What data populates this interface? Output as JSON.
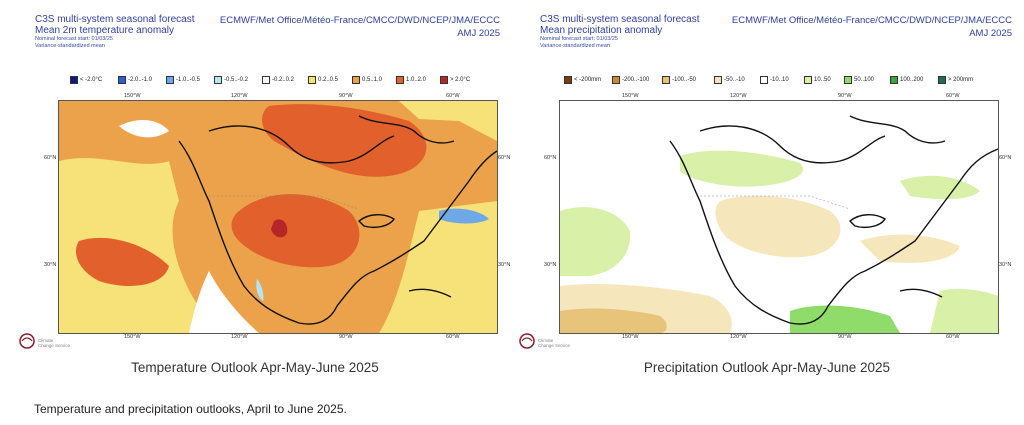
{
  "figure_caption": "Temperature and precipitation outlooks, April to June 2025.",
  "left": {
    "title": "C3S multi-system seasonal forecast",
    "subtitle": "Mean 2m temperature anomaly",
    "start": "Nominal forecast start: 01/03/25",
    "note": "Variance-standardized mean",
    "centres": "ECMWF/Met Office/Météo-France/CMCC/DWD/NCEP/JMA/ECCC",
    "period": "AMJ 2025",
    "legend": [
      {
        "label": "< -2.0°C",
        "color": "#0a1a80"
      },
      {
        "label": "-2.0..-1.0",
        "color": "#2f5bd9"
      },
      {
        "label": "-1.0..-0.5",
        "color": "#6fa8e6"
      },
      {
        "label": "-0.5..-0.2",
        "color": "#b5e4f2"
      },
      {
        "label": "-0.2..0.2",
        "color": "#ffffff"
      },
      {
        "label": "0.2..0.5",
        "color": "#f7e27a"
      },
      {
        "label": "0.5..1.0",
        "color": "#eba24a"
      },
      {
        "label": "1.0..2.0",
        "color": "#e2602b"
      },
      {
        "label": "> 2.0°C",
        "color": "#b52626"
      }
    ],
    "lon_labels": [
      "150°W",
      "120°W",
      "90°W",
      "60°W"
    ],
    "lat_labels": [
      "60°N",
      "30°N"
    ],
    "caption": "Temperature Outlook Apr-May-June 2025",
    "logo_text": [
      "Climate",
      "Change Service"
    ]
  },
  "right": {
    "title": "C3S multi-system seasonal forecast",
    "subtitle": "Mean precipitation anomaly",
    "start": "Nominal forecast start: 01/03/25",
    "note": "Variance-standardized mean",
    "centres": "ECMWF/Met Office/Météo-France/CMCC/DWD/NCEP/JMA/ECCC",
    "period": "AMJ 2025",
    "legend": [
      {
        "label": "< -200mm",
        "color": "#7a3b12"
      },
      {
        "label": "-200..-100",
        "color": "#c98a3a"
      },
      {
        "label": "-100..-50",
        "color": "#e8c47a"
      },
      {
        "label": "-50..-10",
        "color": "#f6e6bc"
      },
      {
        "label": "-10..10",
        "color": "#ffffff"
      },
      {
        "label": "10..50",
        "color": "#d9f0a8"
      },
      {
        "label": "50..100",
        "color": "#8fdc6a"
      },
      {
        "label": "100..200",
        "color": "#3aa63a"
      },
      {
        "label": "> 200mm",
        "color": "#1f6b5b"
      }
    ],
    "lon_labels": [
      "150°W",
      "120°W",
      "90°W",
      "60°W"
    ],
    "lat_labels": [
      "60°N",
      "30°N"
    ],
    "caption": "Precipitation Outlook Apr-May-June 2025",
    "logo_text": [
      "Climate",
      "Change Service"
    ]
  }
}
